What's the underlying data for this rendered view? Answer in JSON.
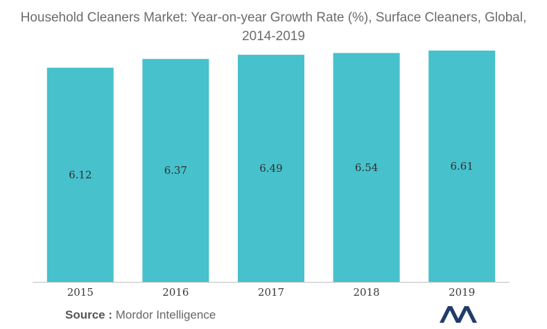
{
  "chart_data": {
    "type": "bar",
    "title_lines": [
      "Household Cleaners Market: Year-on-year Growth Rate (%), Surface Cleaners, Global,",
      "2014-2019"
    ],
    "categories": [
      "2015",
      "2016",
      "2017",
      "2018",
      "2019"
    ],
    "values": [
      6.12,
      6.37,
      6.49,
      6.54,
      6.61
    ],
    "data_labels": [
      "6.12",
      "6.37",
      "6.49",
      "6.54",
      "6.61"
    ],
    "ylim": [
      0,
      6.61
    ],
    "grid": false,
    "legend": "none",
    "bar_color": "#47c1cb"
  },
  "source": {
    "label": "Source :",
    "name": "Mordor Intelligence"
  },
  "logo": {
    "icon": "mordor-intelligence-logo",
    "color": "#1f3d6b"
  }
}
